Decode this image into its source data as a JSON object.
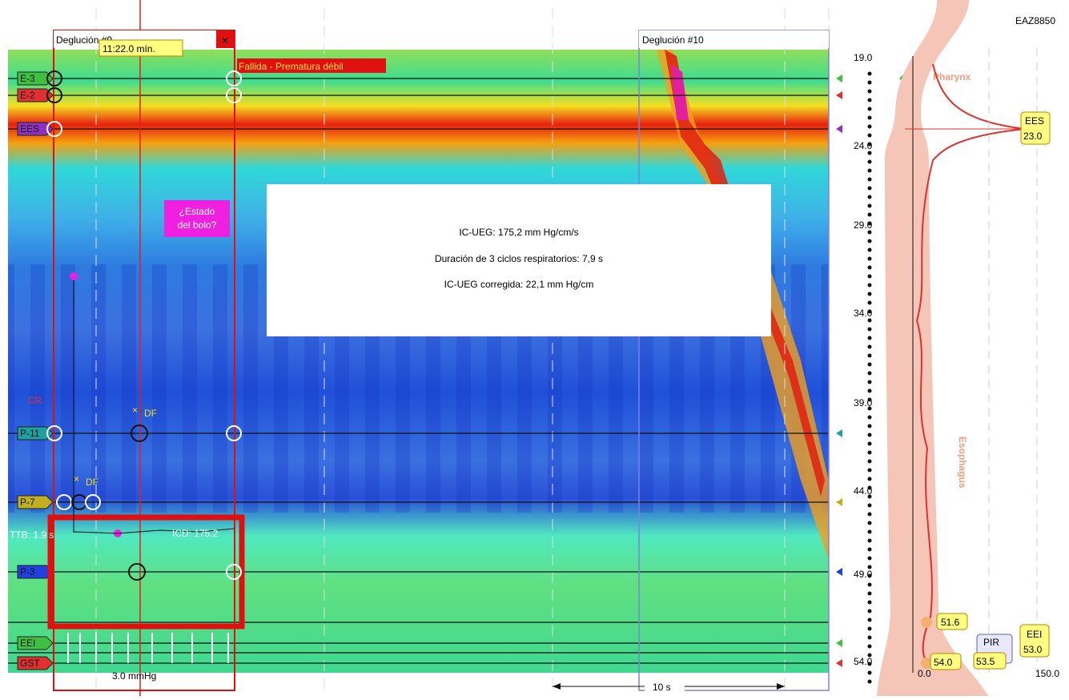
{
  "swallow_9": {
    "title": "Deglución #9",
    "time": "11:22.0 mín.",
    "classification": "Fallida - Prematura débil",
    "bolus_question": "¿Estado del bolo?",
    "ttb": "TTB: 1.9 s",
    "icd": "ICD: 175.2",
    "df_1": "DF",
    "df_2": "DF",
    "scale": "3.0 mmHg"
  },
  "swallow_10": {
    "title": "Deglución #10"
  },
  "patient_id": "EAZ8850",
  "info_box": {
    "lines": [
      "IC-UEG: 175,2 mm Hg/cm/s",
      "Duración de 3 ciclos respiratorios: 7,9 s",
      "IC-UEG corregida: 22,1 mm Hg/cm"
    ]
  },
  "markers": [
    "E-3",
    "E-2",
    "EES",
    "CR",
    "P-11",
    "P-7",
    "P-3",
    "EEI",
    "GST"
  ],
  "time_scale": "10 s",
  "depth_axis": [
    "19.0",
    "24.0",
    "29.0",
    "34.0",
    "39.0",
    "44.0",
    "49.0",
    "54.0"
  ],
  "anatomy": {
    "pharynx": "Pharynx",
    "esophagus": "Esophagus"
  },
  "profile": {
    "ees_label": "EES",
    "ees_value": "23.0",
    "eei_label": "EEI",
    "eei_value": "53.0",
    "mark_1": "51.6",
    "pir_label": "PIR",
    "pir_value": "53.5",
    "mark_2": "54.0",
    "x_min": "0.0",
    "x_max": "150.0"
  }
}
